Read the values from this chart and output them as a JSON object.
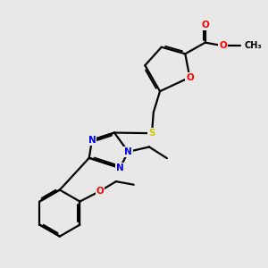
{
  "bg_color": "#e8e8e8",
  "bond_color": "#000000",
  "bond_width": 1.6,
  "atom_colors": {
    "O": "#ff0000",
    "N": "#0000ff",
    "S": "#cccc00",
    "C": "#000000"
  },
  "font_size": 7.5,
  "figsize": [
    3.0,
    3.0
  ],
  "dpi": 100
}
